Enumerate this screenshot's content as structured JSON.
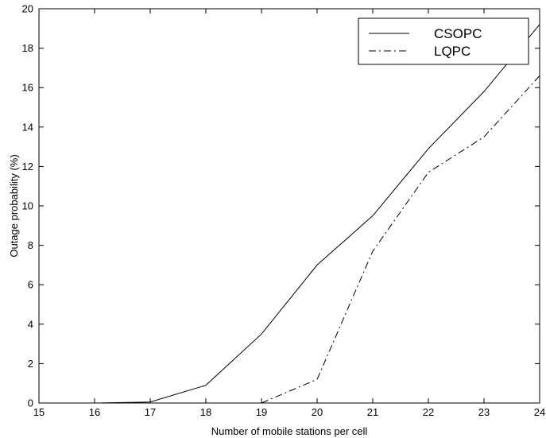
{
  "chart_data": {
    "type": "line",
    "title": "",
    "xlabel": "Number of mobile stations per cell",
    "ylabel": "Outage probability (%)",
    "xlim": [
      15,
      24
    ],
    "ylim": [
      0,
      20
    ],
    "xticks": [
      15,
      16,
      17,
      18,
      19,
      20,
      21,
      22,
      23,
      24
    ],
    "yticks": [
      0,
      2,
      4,
      6,
      8,
      10,
      12,
      14,
      16,
      18,
      20
    ],
    "grid": false,
    "legend_position": "top-right",
    "series": [
      {
        "name": "CSOPC",
        "line_style": "solid",
        "x": [
          15,
          16,
          17,
          18,
          19,
          20,
          21,
          22,
          23,
          24
        ],
        "y": [
          0,
          0,
          0.05,
          0.9,
          3.5,
          7.0,
          9.5,
          12.9,
          15.8,
          19.2
        ]
      },
      {
        "name": "LQPC",
        "line_style": "dash-dot",
        "x": [
          19,
          20,
          21,
          22,
          23,
          24
        ],
        "y": [
          0,
          1.2,
          7.7,
          11.7,
          13.5,
          16.6
        ]
      }
    ]
  }
}
